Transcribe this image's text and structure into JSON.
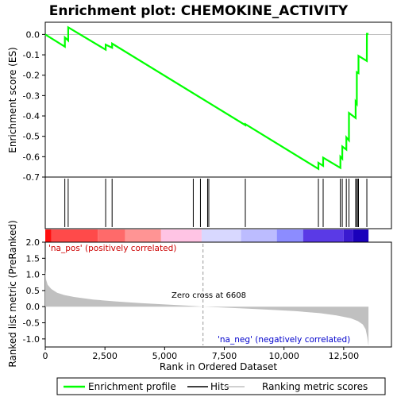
{
  "chart_data": {
    "type": "line",
    "title": "Enrichment plot: CHEMOKINE_ACTIVITY",
    "xlabel": "Rank in Ordered Dataset",
    "xlim": [
      0,
      14500
    ],
    "x_ticks": [
      0,
      2500,
      5000,
      7500,
      10000,
      12500
    ],
    "x_tick_labels": [
      "0",
      "2,500",
      "5,000",
      "7,500",
      "10,000",
      "12,500"
    ],
    "es_panel": {
      "ylabel": "Enrichment score (ES)",
      "ylim": [
        -0.7,
        0.06
      ],
      "y_ticks": [
        0.0,
        -0.1,
        -0.2,
        -0.3,
        -0.4,
        -0.5,
        -0.6,
        -0.7
      ],
      "y_tick_labels": [
        "0.0",
        "-0.1",
        "-0.2",
        "-0.3",
        "-0.4",
        "-0.5",
        "-0.6",
        "-0.7"
      ],
      "grid": false,
      "series_color": "#00ff00",
      "profile": [
        [
          0,
          0.0
        ],
        [
          820,
          -0.06
        ],
        [
          821,
          -0.015
        ],
        [
          960,
          -0.03
        ],
        [
          961,
          0.035
        ],
        [
          2530,
          -0.075
        ],
        [
          2531,
          -0.05
        ],
        [
          2800,
          -0.065
        ],
        [
          2801,
          -0.045
        ],
        [
          8380,
          -0.445
        ],
        [
          8381,
          -0.44
        ],
        [
          11440,
          -0.66
        ],
        [
          11441,
          -0.63
        ],
        [
          11640,
          -0.645
        ],
        [
          11641,
          -0.605
        ],
        [
          12360,
          -0.655
        ],
        [
          12361,
          -0.6
        ],
        [
          12440,
          -0.61
        ],
        [
          12441,
          -0.55
        ],
        [
          12610,
          -0.565
        ],
        [
          12611,
          -0.505
        ],
        [
          12720,
          -0.52
        ],
        [
          12721,
          -0.385
        ],
        [
          13000,
          -0.41
        ],
        [
          13001,
          -0.33
        ],
        [
          13050,
          -0.34
        ],
        [
          13051,
          -0.185
        ],
        [
          13120,
          -0.19
        ],
        [
          13121,
          -0.105
        ],
        [
          13470,
          -0.13
        ],
        [
          13471,
          0.003
        ],
        [
          13540,
          0.003
        ]
      ]
    },
    "hits": [
      820,
      960,
      2530,
      2800,
      6200,
      6500,
      6800,
      6850,
      8380,
      11440,
      11640,
      12360,
      12440,
      12610,
      12720,
      13000,
      13050,
      13100,
      13120,
      13470
    ],
    "color_bar": {
      "segments": [
        {
          "from": 0,
          "to": 260,
          "color": "#ff1010"
        },
        {
          "from": 260,
          "to": 2200,
          "color": "#ff4a4a"
        },
        {
          "from": 2200,
          "to": 3350,
          "color": "#ff6a6a"
        },
        {
          "from": 3350,
          "to": 4850,
          "color": "#ff9494"
        },
        {
          "from": 4850,
          "to": 6550,
          "color": "#ffc4e4"
        },
        {
          "from": 6550,
          "to": 8200,
          "color": "#d8d8ff"
        },
        {
          "from": 8200,
          "to": 9700,
          "color": "#bcbcff"
        },
        {
          "from": 9700,
          "to": 10800,
          "color": "#8c8cff"
        },
        {
          "from": 10800,
          "to": 12500,
          "color": "#5a3ae6"
        },
        {
          "from": 12500,
          "to": 12900,
          "color": "#3a1ad0"
        },
        {
          "from": 12900,
          "to": 13540,
          "color": "#1a00bb"
        }
      ]
    },
    "metric_panel": {
      "ylabel": "Ranked list metric (PreRanked)",
      "ylim": [
        -1.25,
        2.0
      ],
      "y_ticks": [
        2.0,
        1.5,
        1.0,
        0.5,
        0.0,
        -0.5,
        -1.0
      ],
      "y_tick_labels": [
        "2.0",
        "1.5",
        "1.0",
        "0.5",
        "0.0",
        "-0.5",
        "-1.0"
      ],
      "fill_color": "#c0c0c0",
      "metric": [
        [
          0,
          1.15
        ],
        [
          30,
          0.85
        ],
        [
          100,
          0.68
        ],
        [
          250,
          0.55
        ],
        [
          500,
          0.43
        ],
        [
          800,
          0.36
        ],
        [
          1200,
          0.3
        ],
        [
          2000,
          0.22
        ],
        [
          3000,
          0.16
        ],
        [
          4000,
          0.11
        ],
        [
          5000,
          0.07
        ],
        [
          6000,
          0.03
        ],
        [
          6608,
          0.0
        ],
        [
          7500,
          -0.03
        ],
        [
          8500,
          -0.06
        ],
        [
          9500,
          -0.1
        ],
        [
          10500,
          -0.14
        ],
        [
          11500,
          -0.2
        ],
        [
          12200,
          -0.27
        ],
        [
          12800,
          -0.36
        ],
        [
          13100,
          -0.45
        ],
        [
          13300,
          -0.55
        ],
        [
          13420,
          -0.7
        ],
        [
          13490,
          -0.95
        ],
        [
          13540,
          -1.22
        ]
      ],
      "zero_cross_label": "Zero cross at 6608",
      "zero_cross": 6608,
      "pos_label": "'na_pos' (positively correlated)",
      "neg_label": "'na_neg' (negatively correlated)"
    },
    "legend": {
      "placement": "bottom",
      "entries": [
        {
          "label": "Enrichment profile",
          "color": "#00ff00"
        },
        {
          "label": "Hits",
          "color": "#000000"
        },
        {
          "label": "Ranking metric scores",
          "color": "#c0c0c0"
        }
      ]
    }
  }
}
